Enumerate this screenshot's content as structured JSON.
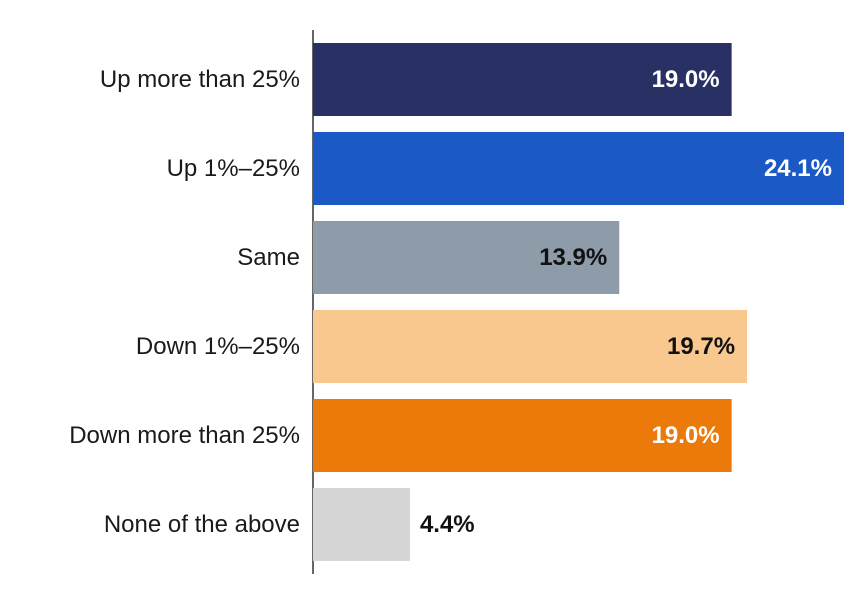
{
  "chart_data": {
    "type": "bar",
    "orientation": "horizontal",
    "title": "",
    "xlabel": "",
    "ylabel": "",
    "categories": [
      "Up more than 25%",
      "Up 1%–25%",
      "Same",
      "Down 1%–25%",
      "Down more than 25%",
      "None of the above"
    ],
    "values": [
      19.0,
      24.1,
      13.9,
      19.7,
      19.0,
      4.4
    ],
    "value_labels": [
      "19.0%",
      "24.1%",
      "13.9%",
      "19.7%",
      "19.0%",
      "4.4%"
    ],
    "colors": [
      "#283064",
      "#1b5ac6",
      "#8e9ba8",
      "#f9c88e",
      "#ec7a0a",
      "#d6d6d6"
    ],
    "label_colors": [
      "#ffffff",
      "#ffffff",
      "#111111",
      "#111111",
      "#ffffff",
      "#111111"
    ],
    "label_position": [
      "inside",
      "inside",
      "inside",
      "inside",
      "inside",
      "outside"
    ],
    "xlim": [
      0,
      24.1
    ],
    "grid": false,
    "legend": "none"
  }
}
